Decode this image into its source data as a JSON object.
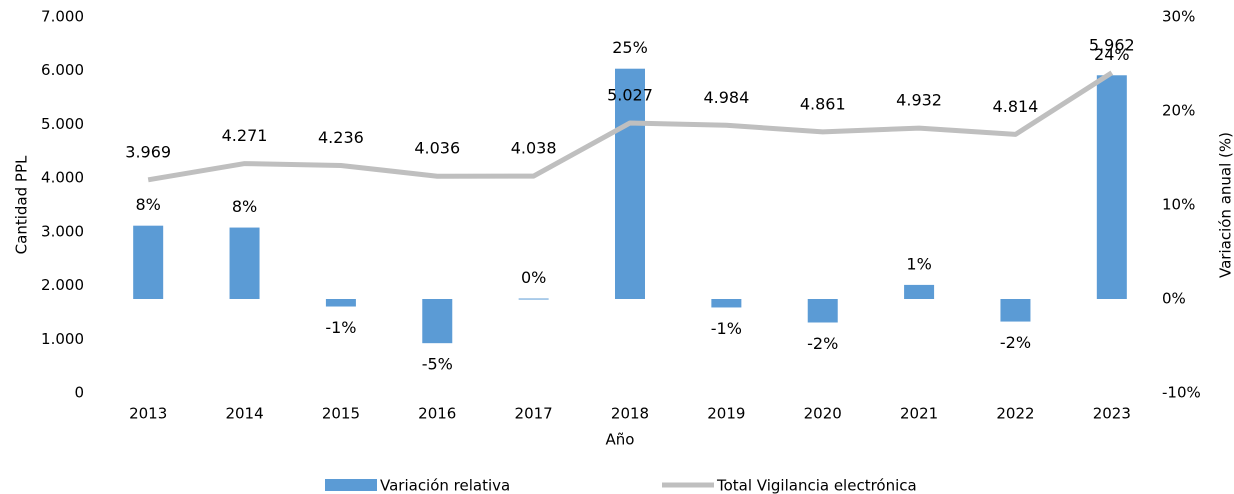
{
  "chart_data": {
    "type": "bar-line",
    "x_label": "Año",
    "y_label": "Cantidad PPL",
    "y2_label": "Variación anual (%)",
    "categories": [
      "2013",
      "2014",
      "2015",
      "2016",
      "2017",
      "2018",
      "2019",
      "2020",
      "2021",
      "2022",
      "2023"
    ],
    "series": [
      {
        "name": "Variación relativa",
        "type": "bar",
        "axis": "y2",
        "color": "#5b9bd5",
        "values": [
          7.8,
          7.6,
          -0.8,
          -4.7,
          0.05,
          24.5,
          -0.9,
          -2.5,
          1.5,
          -2.4,
          23.8
        ],
        "value_labels": [
          "8%",
          "8%",
          "-1%",
          "-5%",
          "0%",
          "25%",
          "-1%",
          "-2%",
          "1%",
          "-2%",
          "24%"
        ]
      },
      {
        "name": "Total Vigilancia electrónica",
        "type": "line",
        "axis": "y",
        "color": "#bfbfbf",
        "values": [
          3969,
          4271,
          4236,
          4036,
          4038,
          5027,
          4984,
          4861,
          4932,
          4814,
          5962
        ],
        "value_labels": [
          "3.969",
          "4.271",
          "4.236",
          "4.036",
          "4.038",
          "5.027",
          "4.984",
          "4.861",
          "4.932",
          "4.814",
          "5.962"
        ]
      }
    ],
    "ylim": [
      0,
      7000
    ],
    "yticks": [
      0,
      {
        "value": 1000,
        "label": "1.000"
      },
      {
        "value": 2000,
        "label": "2.000"
      },
      {
        "value": 3000,
        "label": "3.000"
      },
      {
        "value": 4000,
        "label": "4.000"
      },
      {
        "value": 5000,
        "label": "5.000"
      },
      {
        "value": 6000,
        "label": "6.000"
      },
      {
        "value": 7000,
        "label": "7.000"
      }
    ],
    "y2lim": [
      -10,
      30
    ],
    "y2ticks": [
      {
        "value": -10,
        "label": "-10%"
      },
      {
        "value": 0,
        "label": "0%"
      },
      {
        "value": 10,
        "label": "10%"
      },
      {
        "value": 20,
        "label": "20%"
      },
      {
        "value": 30,
        "label": "30%"
      }
    ],
    "grid": false,
    "legend": "bottom"
  }
}
